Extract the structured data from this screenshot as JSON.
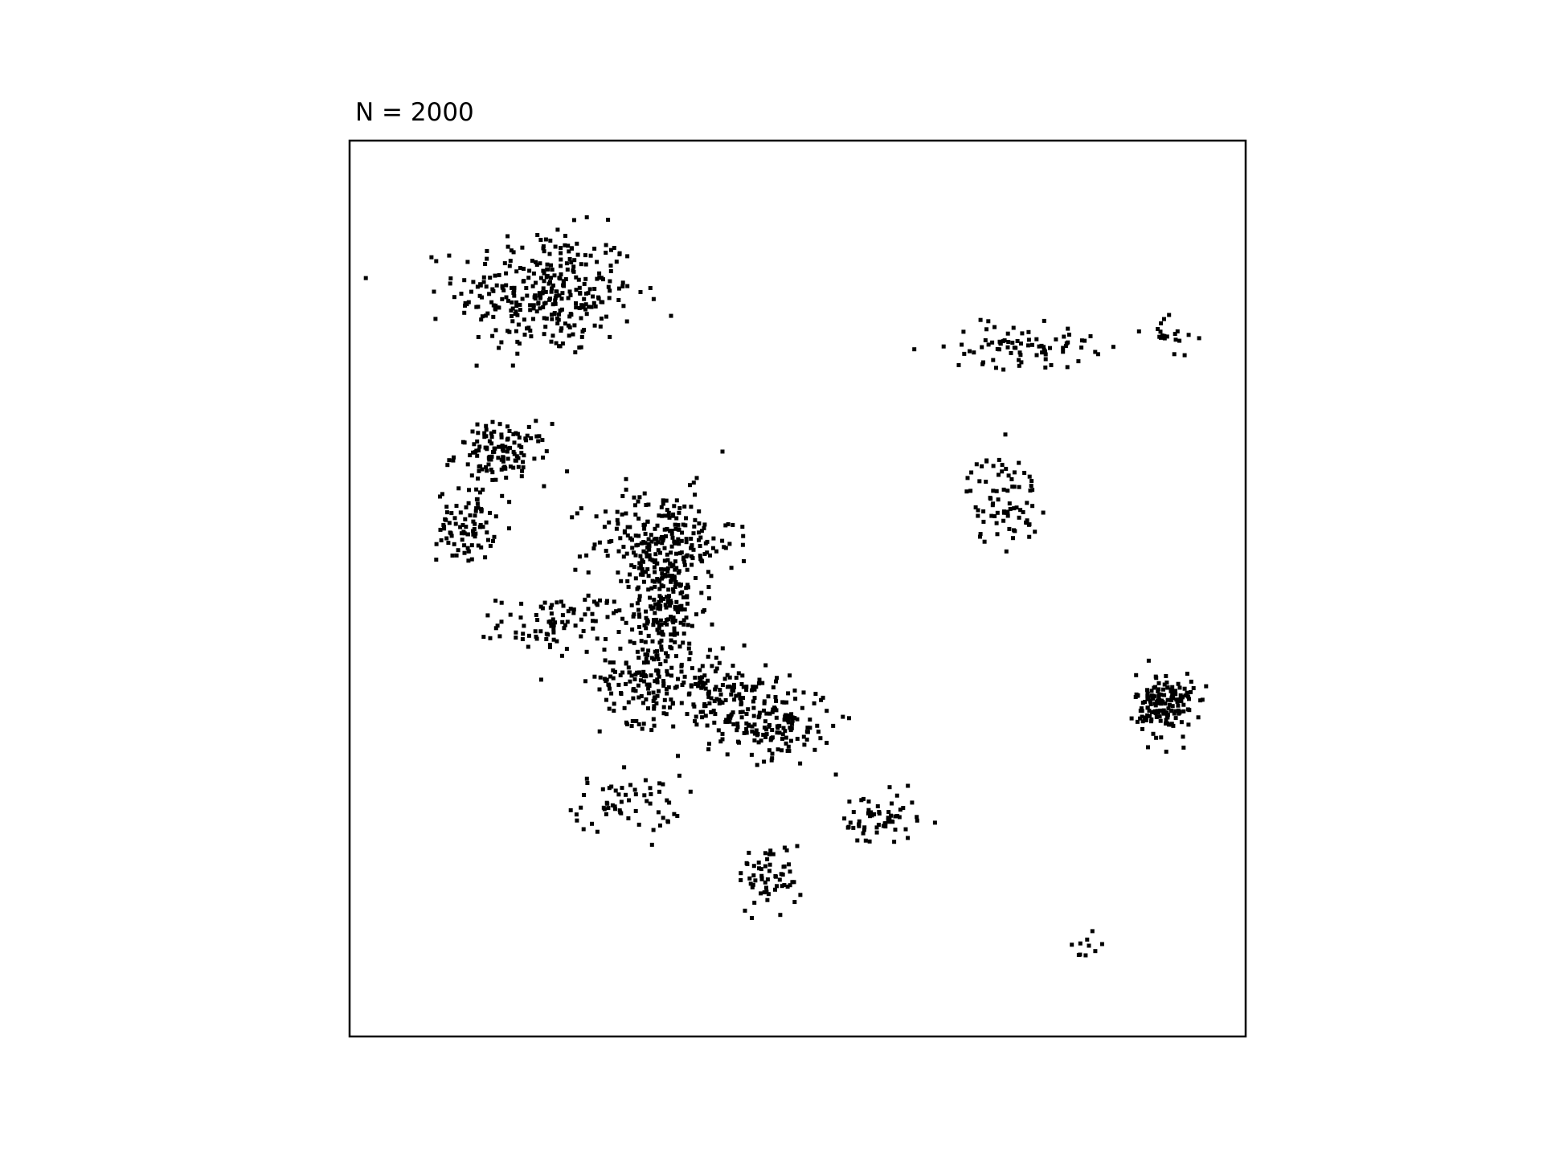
{
  "chart_data": {
    "type": "scatter",
    "title": "N = 2000",
    "xlabel": "",
    "ylabel": "",
    "xticks": [],
    "yticks": [],
    "grid": false,
    "legend": false,
    "xlim": [
      0,
      1
    ],
    "ylim": [
      0,
      1
    ],
    "point_count": 2000,
    "marker_color": "#000000",
    "frame_color": "#000000",
    "clusters": [
      {
        "cx": 0.22,
        "cy": 0.83,
        "sx": 0.05,
        "sy": 0.035,
        "n": 330
      },
      {
        "cx": 0.31,
        "cy": 0.26,
        "sx": 0.03,
        "sy": 0.016,
        "n": 60
      },
      {
        "cx": 0.17,
        "cy": 0.65,
        "sx": 0.026,
        "sy": 0.017,
        "n": 125
      },
      {
        "cx": 0.13,
        "cy": 0.57,
        "sx": 0.016,
        "sy": 0.02,
        "n": 85
      },
      {
        "cx": 0.23,
        "cy": 0.46,
        "sx": 0.032,
        "sy": 0.016,
        "n": 85
      },
      {
        "cx": 0.35,
        "cy": 0.55,
        "sx": 0.04,
        "sy": 0.03,
        "n": 260
      },
      {
        "cx": 0.35,
        "cy": 0.48,
        "sx": 0.02,
        "sy": 0.025,
        "n": 150
      },
      {
        "cx": 0.33,
        "cy": 0.4,
        "sx": 0.025,
        "sy": 0.025,
        "n": 150
      },
      {
        "cx": 0.41,
        "cy": 0.39,
        "sx": 0.028,
        "sy": 0.018,
        "n": 110
      },
      {
        "cx": 0.47,
        "cy": 0.35,
        "sx": 0.035,
        "sy": 0.02,
        "n": 170
      },
      {
        "cx": 0.59,
        "cy": 0.24,
        "sx": 0.022,
        "sy": 0.016,
        "n": 60
      },
      {
        "cx": 0.47,
        "cy": 0.18,
        "sx": 0.018,
        "sy": 0.018,
        "n": 60
      },
      {
        "cx": 0.75,
        "cy": 0.77,
        "sx": 0.04,
        "sy": 0.012,
        "n": 80
      },
      {
        "cx": 0.91,
        "cy": 0.79,
        "sx": 0.015,
        "sy": 0.012,
        "n": 20
      },
      {
        "cx": 0.73,
        "cy": 0.6,
        "sx": 0.02,
        "sy": 0.025,
        "n": 80
      },
      {
        "cx": 0.91,
        "cy": 0.37,
        "sx": 0.016,
        "sy": 0.018,
        "n": 165
      },
      {
        "cx": 0.82,
        "cy": 0.1,
        "sx": 0.01,
        "sy": 0.01,
        "n": 10
      }
    ]
  }
}
